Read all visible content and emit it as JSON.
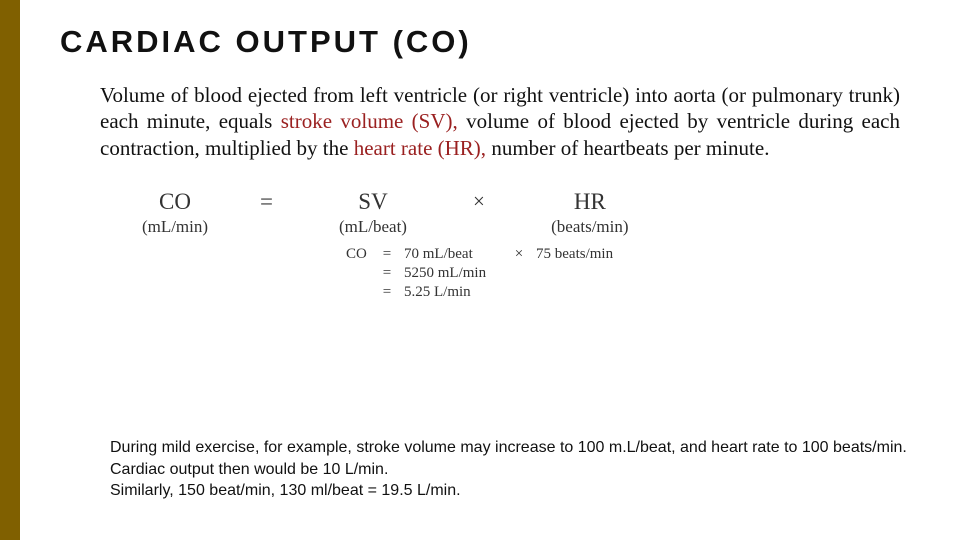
{
  "title": "CARDIAC OUTPUT (CO)",
  "paragraph": {
    "pre1": "Volume of blood ejected from left ventricle (or right ventricle) into aorta (or pulmonary trunk) each minute, equals ",
    "term1": "stroke volume (SV),",
    "mid1": " volume of blood ejected by ventricle during each contraction, multiplied by the ",
    "term2": "heart rate (HR),",
    "post1": " number of heartbeats per minute."
  },
  "formula": {
    "co_sym": "CO",
    "co_unit": "(mL/min)",
    "eq": "=",
    "sv_sym": "SV",
    "sv_unit": "(mL/beat)",
    "times": "×",
    "hr_sym": "HR",
    "hr_unit": "(beats/min)"
  },
  "example": {
    "label": "CO",
    "eq": "=",
    "r1_sv": "70 mL/beat",
    "times": "×",
    "r1_hr": "75 beats/min",
    "r2_val": "5250 mL/min",
    "r3_val": "5.25 L/min"
  },
  "footer": {
    "l1": "During mild exercise, for example, stroke volume may increase to 100 m.L/beat, and heart rate to 100 beats/min.",
    "l2": "Cardiac output then would be 10 L/min.",
    "l3": "Similarly, 150 beat/min, 130 ml/beat = 19.5 L/min."
  },
  "colors": {
    "sidebar": "#806000",
    "term_red": "#9a2020",
    "text": "#111111",
    "formula_text": "#333333",
    "background": "#ffffff"
  }
}
